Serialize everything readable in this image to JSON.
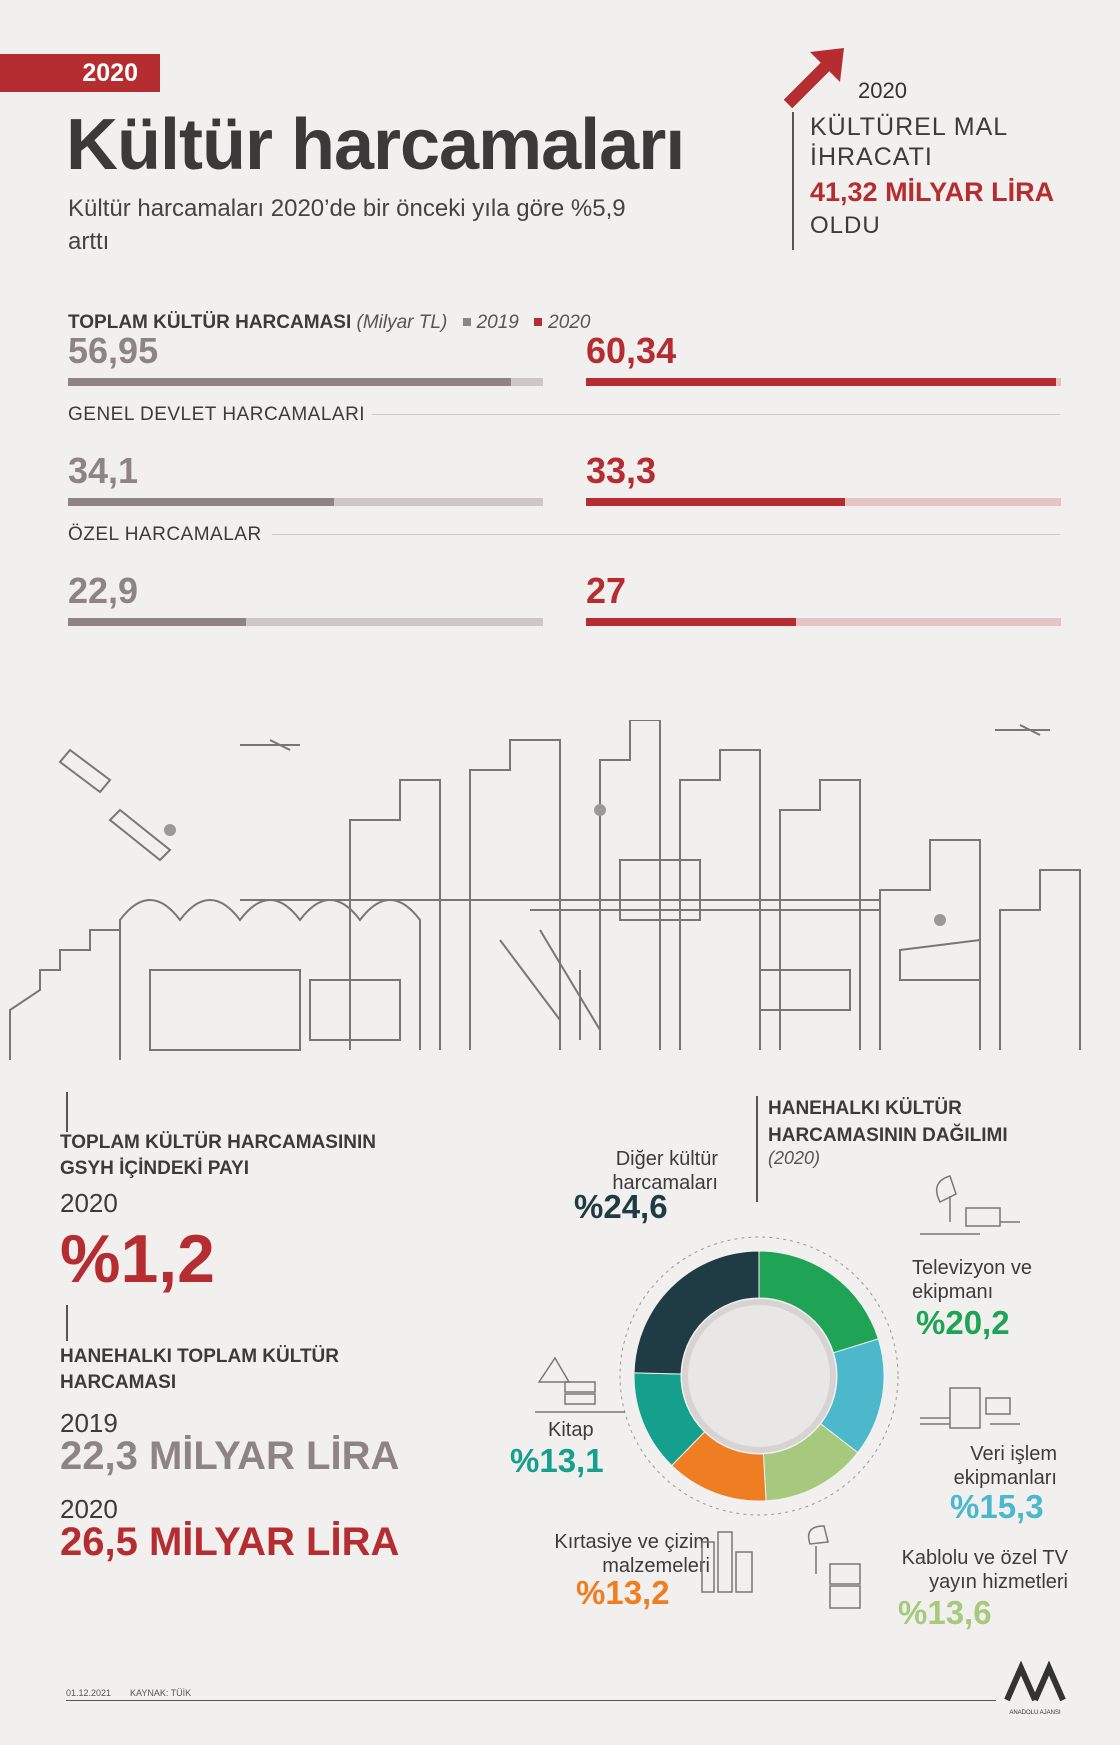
{
  "header": {
    "year_badge": "2020",
    "title": "Kültür harcamaları",
    "subtitle": "Kültür harcamaları 2020’de bir önceki yıla göre %5,9 arttı"
  },
  "export": {
    "year": "2020",
    "label_line1": "KÜLTÜREL MAL",
    "label_line2": "İHRACATI",
    "value": "41,32 MİLYAR LİRA",
    "foot": "OLDU"
  },
  "legend": {
    "title": "TOPLAM KÜLTÜR HARCAMASI",
    "unit": "(Milyar TL)",
    "y2019": "2019",
    "y2020": "2020",
    "color_2019": "#8e8385",
    "color_2020": "#b52d30"
  },
  "sections": [
    {
      "title": "",
      "v2019": "56,95",
      "v2020": "60,34"
    },
    {
      "title": "GENEL DEVLET HARCAMALARI",
      "v2019": "34,1",
      "v2020": "33,3"
    },
    {
      "title": "ÖZEL HARCAMALAR",
      "v2019": "22,9",
      "v2020": "27"
    }
  ],
  "gdp_share": {
    "title_line1": "TOPLAM KÜLTÜR HARCAMASININ",
    "title_line2": "GSYH İÇİNDEKİ PAYI",
    "year": "2020",
    "value": "%1,2"
  },
  "household_total": {
    "title_line1": "HANEHALKI TOPLAM KÜLTÜR",
    "title_line2": "HARCAMASI",
    "year_2019": "2019",
    "value_2019": "22,3 MİLYAR LİRA",
    "year_2020": "2020",
    "value_2020": "26,5 MİLYAR LİRA"
  },
  "distribution": {
    "title_line1": "HANEHALKI KÜLTÜR",
    "title_line2": "HARCAMASININ DAĞILIMI",
    "sub": "(2020)"
  },
  "chart_data": [
    {
      "type": "bar",
      "title": "TOPLAM KÜLTÜR HARCAMASI",
      "unit": "Milyar TL",
      "categories": [
        "TOPLAM KÜLTÜR HARCAMASI",
        "GENEL DEVLET HARCAMALARI",
        "ÖZEL HARCAMALAR"
      ],
      "series": [
        {
          "name": "2019",
          "values": [
            56.95,
            34.1,
            22.9
          ]
        },
        {
          "name": "2020",
          "values": [
            60.34,
            33.3,
            27
          ]
        }
      ]
    },
    {
      "type": "pie",
      "title": "HANEHALKI KÜLTÜR HARCAMASININ DAĞILIMI",
      "slices": [
        {
          "label_line1": "Televizyon ve",
          "label_line2": "ekipmanı",
          "value": 20.2,
          "value_text": "%20,2",
          "color": "#1fa455"
        },
        {
          "label_line1": "Veri işlem",
          "label_line2": "ekipmanları",
          "value": 15.3,
          "value_text": "%15,3",
          "color": "#4bb8cc"
        },
        {
          "label_line1": "Kablolu ve özel TV",
          "label_line2": "yayın hizmetleri",
          "value": 13.6,
          "value_text": "%13,6",
          "color": "#a6c97d"
        },
        {
          "label_line1": "Kırtasiye ve çizim",
          "label_line2": "malzemeleri",
          "value": 13.2,
          "value_text": "%13,2",
          "color": "#ef7d22"
        },
        {
          "label_line1": "Kitap",
          "label_line2": "",
          "value": 13.1,
          "value_text": "%13,1",
          "color": "#14a08c"
        },
        {
          "label_line1": "Diğer kültür",
          "label_line2": "harcamaları",
          "value": 24.6,
          "value_text": "%24,6",
          "color": "#1f3c45"
        }
      ]
    }
  ],
  "footer": {
    "date": "01.12.2021",
    "source": "KAYNAK: TÜİK",
    "logo_text": "ANADOLU AJANSI"
  }
}
